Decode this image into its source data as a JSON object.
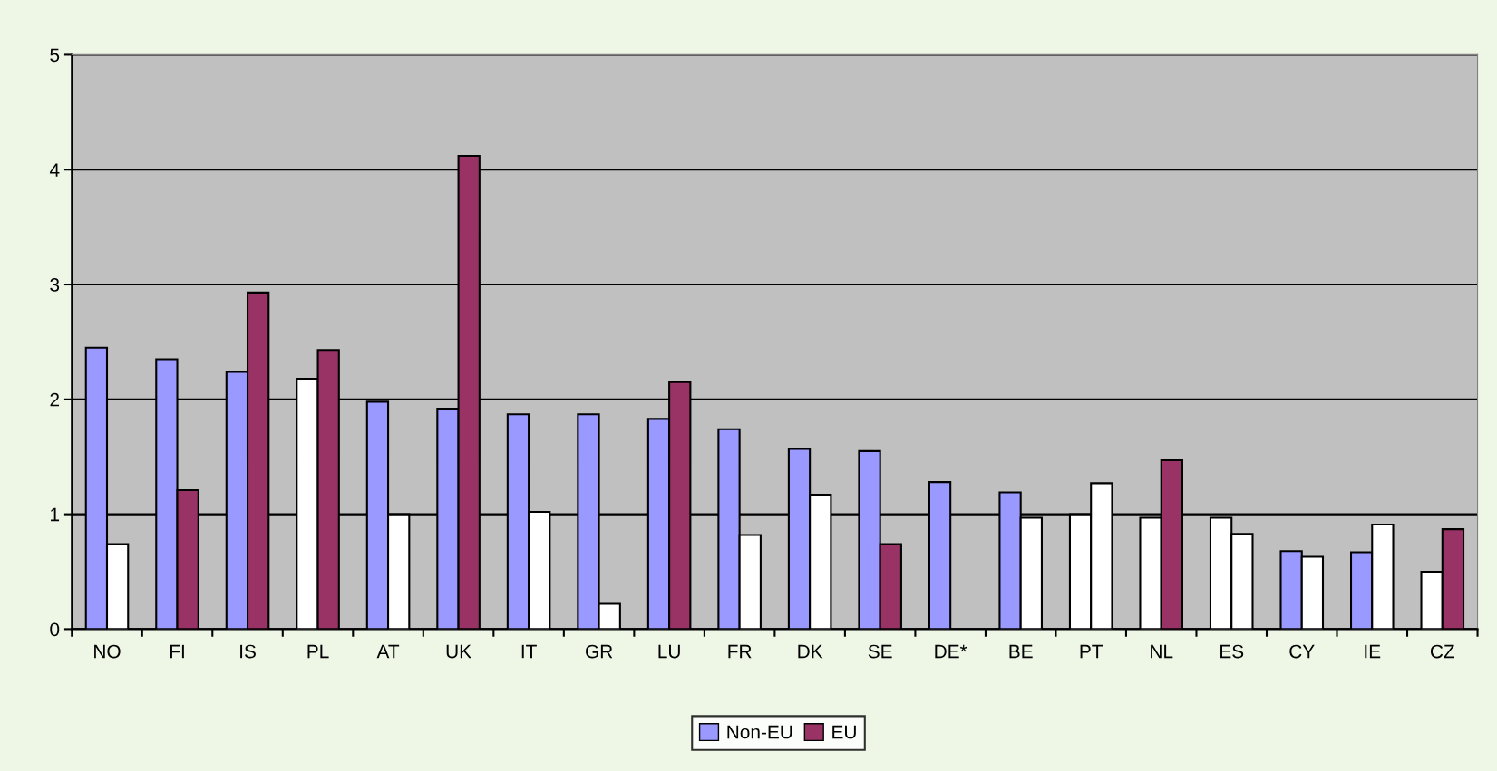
{
  "chart_data": {
    "type": "bar",
    "categories": [
      "NO",
      "FI",
      "IS",
      "PL",
      "AT",
      "UK",
      "IT",
      "GR",
      "LU",
      "FR",
      "DK",
      "SE",
      "DE*",
      "BE",
      "PT",
      "NL",
      "ES",
      "CY",
      "IE",
      "CZ"
    ],
    "series": [
      {
        "name": "Non-EU",
        "color": "#9999ff",
        "values": [
          2.45,
          2.35,
          2.24,
          2.18,
          1.98,
          1.92,
          1.87,
          1.87,
          1.83,
          1.74,
          1.57,
          1.55,
          1.28,
          1.19,
          1.0,
          0.97,
          0.97,
          0.68,
          0.67,
          0.5
        ],
        "colors": [
          "#9999ff",
          "#9999ff",
          "#9999ff",
          "#ffffff",
          "#9999ff",
          "#9999ff",
          "#9999ff",
          "#9999ff",
          "#9999ff",
          "#9999ff",
          "#9999ff",
          "#9999ff",
          "#9999ff",
          "#9999ff",
          "#ffffff",
          "#ffffff",
          "#ffffff",
          "#9999ff",
          "#9999ff",
          "#ffffff"
        ]
      },
      {
        "name": "EU",
        "color": "#993366",
        "values": [
          0.74,
          1.21,
          2.93,
          2.43,
          1.0,
          4.12,
          1.02,
          0.22,
          2.15,
          0.82,
          1.17,
          0.74,
          null,
          0.97,
          1.27,
          1.47,
          0.83,
          0.63,
          0.91,
          0.87
        ],
        "colors": [
          "#ffffff",
          "#993366",
          "#993366",
          "#993366",
          "#ffffff",
          "#993366",
          "#ffffff",
          "#ffffff",
          "#993366",
          "#ffffff",
          "#ffffff",
          "#993366",
          "#ffffff",
          "#ffffff",
          "#ffffff",
          "#993366",
          "#ffffff",
          "#ffffff",
          "#ffffff",
          "#993366"
        ]
      }
    ],
    "ylim": [
      0,
      5
    ],
    "yticks": [
      0,
      1,
      2,
      3,
      4,
      5
    ],
    "grid": "y",
    "legend": "bottom"
  }
}
